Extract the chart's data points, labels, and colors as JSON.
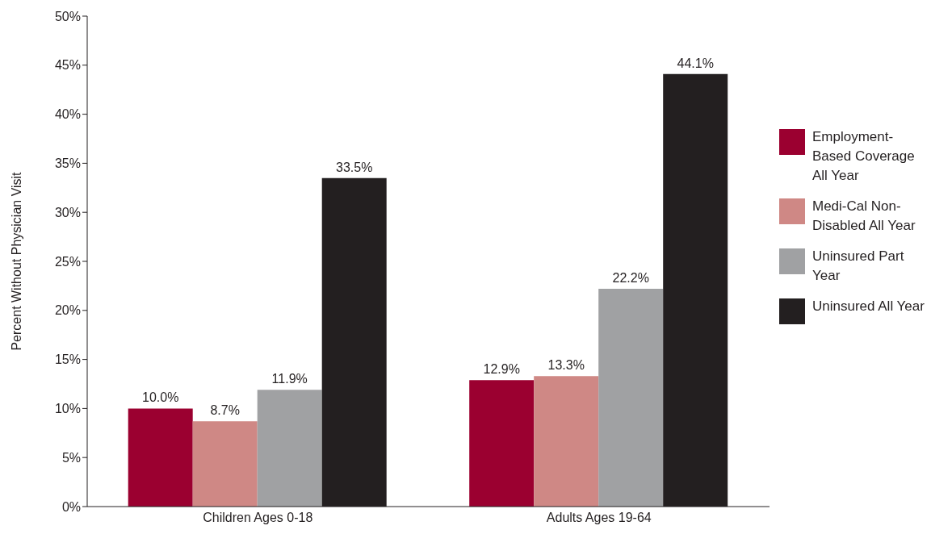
{
  "chart_data": {
    "type": "bar",
    "ylabel": "Percent Without Physician Visit",
    "categories": [
      "Children Ages 0-18",
      "Adults Ages 19-64"
    ],
    "series": [
      {
        "name": "Employment-Based Coverage All Year",
        "color": "#9b0030",
        "values": [
          10.0,
          12.9
        ],
        "value_labels": [
          "10.0%",
          "12.9%"
        ]
      },
      {
        "name": "Medi-Cal Non-Disabled All Year",
        "color": "#cf8885",
        "values": [
          8.7,
          13.3
        ],
        "value_labels": [
          "8.7%",
          "13.3%"
        ]
      },
      {
        "name": "Uninsured Part Year",
        "color": "#a0a1a3",
        "values": [
          11.9,
          22.2
        ],
        "value_labels": [
          "11.9%",
          "22.2%"
        ]
      },
      {
        "name": "Uninsured All Year",
        "color": "#231f20",
        "values": [
          33.5,
          44.1
        ],
        "value_labels": [
          "33.5%",
          "44.1%"
        ]
      }
    ],
    "ylim": [
      0,
      50
    ],
    "yticks": [
      {
        "value": 0,
        "label": "0%"
      },
      {
        "value": 5,
        "label": "5%"
      },
      {
        "value": 10,
        "label": "10%"
      },
      {
        "value": 15,
        "label": "15%"
      },
      {
        "value": 20,
        "label": "20%"
      },
      {
        "value": 25,
        "label": "25%"
      },
      {
        "value": 30,
        "label": "30%"
      },
      {
        "value": 35,
        "label": "35%"
      },
      {
        "value": 40,
        "label": "40%"
      },
      {
        "value": 45,
        "label": "45%"
      },
      {
        "value": 50,
        "label": "50%"
      }
    ],
    "grid": false,
    "legend": "right"
  }
}
